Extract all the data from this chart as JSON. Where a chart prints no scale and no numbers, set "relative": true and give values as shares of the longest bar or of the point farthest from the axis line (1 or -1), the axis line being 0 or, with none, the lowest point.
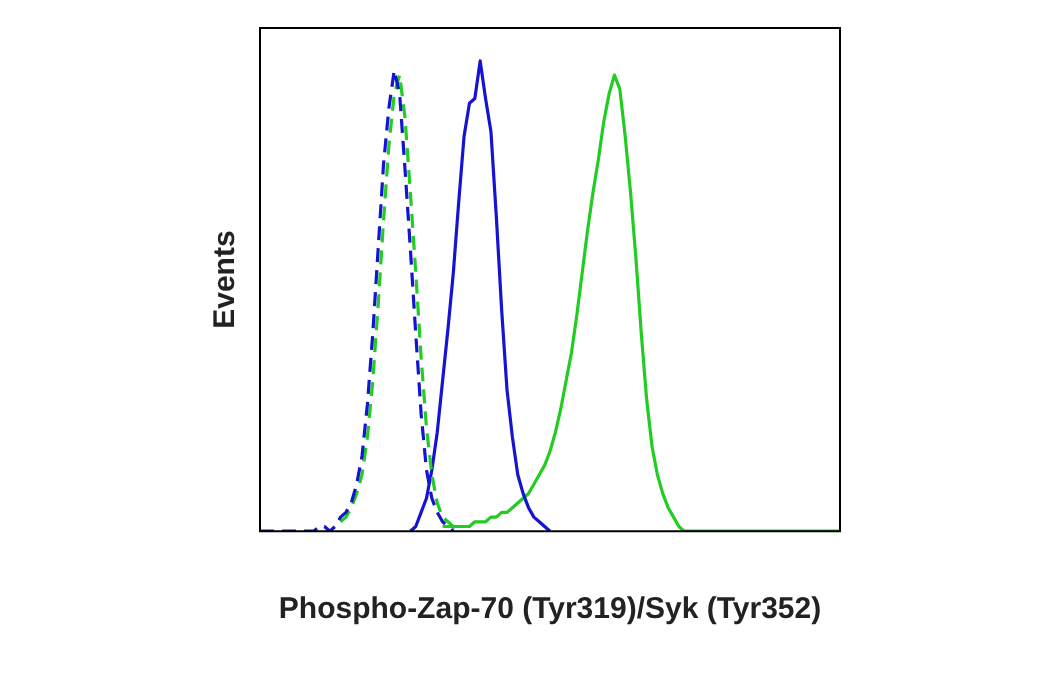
{
  "chart_data": {
    "type": "line",
    "relative": true,
    "xlabel": "Phospho-Zap-70 (Tyr319)/Syk (Tyr352)",
    "ylabel": "Events",
    "grid": false,
    "legend": false,
    "marker": "none",
    "categories": [
      null,
      null,
      null,
      null,
      null,
      null,
      null,
      null,
      null,
      null,
      null,
      null,
      null,
      null,
      null,
      null,
      null,
      null,
      null,
      null,
      null,
      null,
      null,
      null,
      null,
      null,
      null,
      null,
      null,
      null,
      null,
      null,
      null,
      null,
      null,
      null,
      null,
      null,
      null,
      null,
      null,
      null,
      null,
      null,
      null,
      null,
      null,
      null,
      null,
      null,
      null,
      null,
      null,
      null,
      null,
      null,
      null,
      null,
      null,
      null,
      null,
      null,
      null,
      null,
      null,
      null,
      null,
      null,
      null,
      null,
      null,
      null,
      null,
      null,
      null,
      null,
      null,
      null,
      null,
      null,
      null,
      null,
      null,
      null,
      null,
      null,
      null,
      null,
      null,
      null,
      null,
      null,
      null,
      null,
      null,
      null,
      null,
      null,
      null,
      null,
      null,
      null,
      null,
      null,
      null,
      null,
      null,
      null,
      null
    ],
    "series": [
      {
        "color": "#1414d2",
        "line_style": "dashed",
        "values": [
          0,
          0,
          0,
          0,
          0,
          0,
          0,
          0,
          0,
          0,
          0,
          0.01,
          0.01,
          0,
          0.01,
          0.03,
          0.04,
          0.06,
          0.1,
          0.16,
          0.27,
          0.42,
          0.6,
          0.78,
          0.9,
          0.98,
          0.93,
          0.77,
          0.6,
          0.42,
          0.25,
          0.13,
          0.07,
          0.04,
          0.02,
          0.01,
          0,
          null,
          null,
          null,
          null,
          null,
          null,
          null,
          null,
          null,
          null,
          null,
          null,
          null,
          null,
          null,
          null,
          null,
          null,
          null,
          null,
          null,
          null,
          null,
          null,
          null,
          null,
          null,
          null,
          null,
          null,
          null,
          null,
          null,
          null,
          null,
          null,
          null,
          null,
          null,
          null,
          null,
          null,
          null,
          null,
          null,
          null,
          null,
          null,
          null,
          null,
          null,
          null,
          null,
          null,
          null,
          null,
          null,
          null,
          null,
          null,
          null,
          null,
          null,
          null,
          null,
          null,
          null,
          null,
          null,
          null,
          null,
          null
        ]
      },
      {
        "color": "#22cc22",
        "line_style": "dashed",
        "values": [
          null,
          null,
          null,
          null,
          null,
          null,
          null,
          null,
          null,
          null,
          null,
          null,
          null,
          null,
          null,
          0.02,
          0.03,
          0.05,
          0.08,
          0.12,
          0.2,
          0.32,
          0.48,
          0.66,
          0.82,
          0.93,
          0.97,
          0.88,
          0.72,
          0.55,
          0.37,
          0.22,
          0.12,
          0.06,
          0.03,
          0.02,
          0.01,
          0,
          null,
          null,
          null,
          null,
          null,
          null,
          null,
          null,
          null,
          null,
          null,
          null,
          null,
          null,
          null,
          null,
          null,
          null,
          null,
          null,
          null,
          null,
          null,
          null,
          null,
          null,
          null,
          null,
          null,
          null,
          null,
          null,
          null,
          null,
          null,
          null,
          null,
          null,
          null,
          null,
          null,
          null,
          null,
          null,
          null,
          null,
          null,
          null,
          null,
          null,
          null,
          null,
          null,
          null,
          null,
          null,
          null,
          null,
          null,
          null,
          null,
          null,
          null,
          null,
          null,
          null,
          null,
          null,
          null,
          null,
          null
        ]
      },
      {
        "color": "#1414d2",
        "line_style": "solid",
        "values": [
          null,
          null,
          null,
          null,
          null,
          null,
          null,
          null,
          null,
          null,
          null,
          null,
          null,
          null,
          null,
          null,
          null,
          null,
          null,
          null,
          null,
          null,
          null,
          null,
          null,
          null,
          null,
          null,
          0,
          0.01,
          0.04,
          0.07,
          0.13,
          0.21,
          0.32,
          0.43,
          0.55,
          0.7,
          0.84,
          0.91,
          0.92,
          1,
          0.92,
          0.85,
          0.67,
          0.47,
          0.3,
          0.2,
          0.12,
          0.08,
          0.05,
          0.03,
          0.02,
          0.01,
          0,
          null,
          null,
          null,
          null,
          null,
          null,
          null,
          null,
          null,
          null,
          null,
          null,
          null,
          null,
          null,
          null,
          null,
          null,
          null,
          null,
          null,
          null,
          null,
          null,
          null,
          null,
          null,
          null,
          null,
          null,
          null,
          null,
          null,
          null,
          null,
          null,
          null,
          null,
          null,
          null,
          null,
          null,
          null,
          null,
          null,
          null,
          null,
          null,
          null,
          null,
          null,
          null,
          null,
          null
        ]
      },
      {
        "color": "#22cc22",
        "line_style": "solid",
        "values": [
          null,
          null,
          null,
          null,
          null,
          null,
          null,
          null,
          null,
          null,
          null,
          null,
          null,
          null,
          null,
          null,
          null,
          null,
          null,
          null,
          null,
          null,
          null,
          null,
          null,
          null,
          null,
          null,
          null,
          null,
          null,
          null,
          null,
          null,
          0.01,
          0.01,
          0.01,
          0.01,
          0.01,
          0.01,
          0.02,
          0.02,
          0.02,
          0.03,
          0.03,
          0.04,
          0.04,
          0.05,
          0.06,
          0.07,
          0.08,
          0.1,
          0.12,
          0.14,
          0.17,
          0.21,
          0.26,
          0.32,
          0.38,
          0.46,
          0.55,
          0.64,
          0.72,
          0.79,
          0.87,
          0.93,
          0.97,
          0.94,
          0.84,
          0.72,
          0.58,
          0.42,
          0.28,
          0.18,
          0.12,
          0.08,
          0.05,
          0.03,
          0.01,
          0,
          0,
          0,
          0,
          0,
          0,
          0,
          0,
          0,
          0,
          0,
          0,
          0,
          0,
          0,
          0,
          0,
          0,
          0,
          0,
          0,
          0,
          0,
          0,
          0,
          0,
          0,
          0,
          0,
          0
        ]
      }
    ]
  }
}
